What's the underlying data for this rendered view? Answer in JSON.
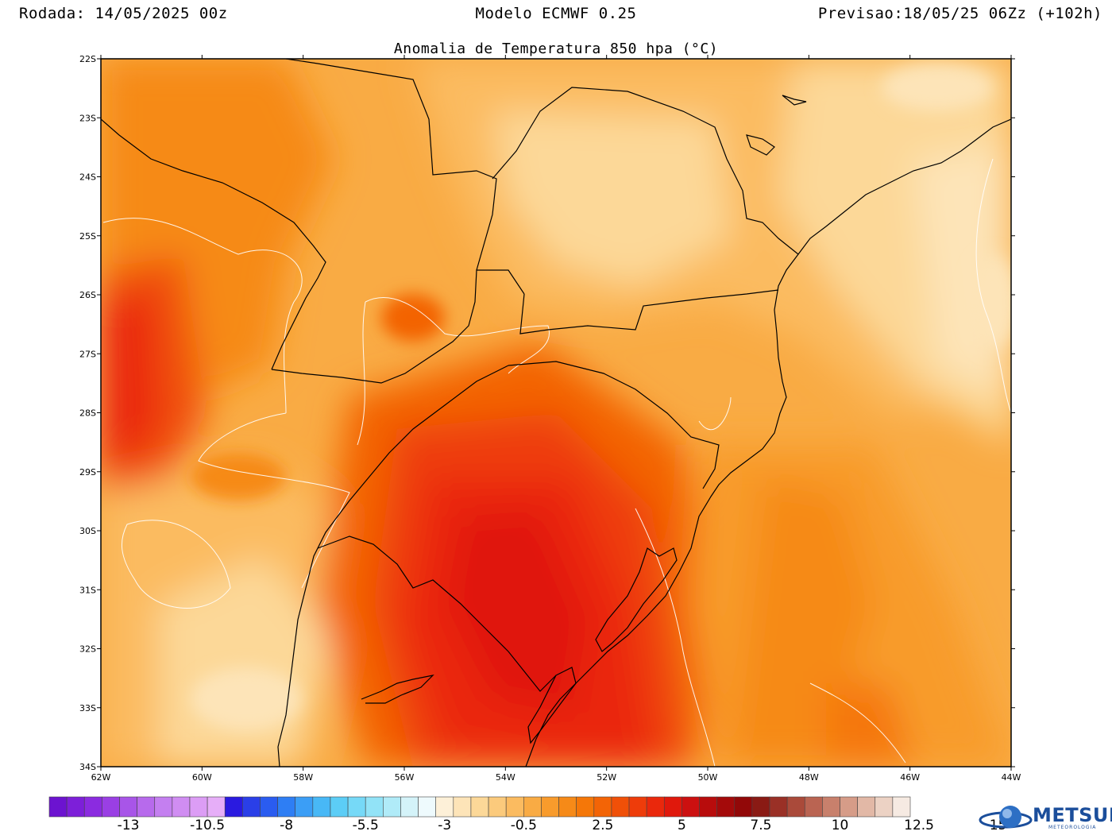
{
  "header": {
    "left": "Rodada: 14/05/2025 00z",
    "center": "Modelo ECMWF 0.25",
    "right": "Previsao:18/05/25 06Zz (+102h)"
  },
  "map": {
    "title": "Anomalia de Temperatura 850 hpa (°C)",
    "lat_labels": [
      "22S",
      "23S",
      "24S",
      "25S",
      "26S",
      "27S",
      "28S",
      "29S",
      "30S",
      "31S",
      "32S",
      "33S",
      "34S"
    ],
    "lon_labels": [
      "62W",
      "60W",
      "58W",
      "56W",
      "54W",
      "52W",
      "50W",
      "48W",
      "46W",
      "44W"
    ],
    "lon_range": [
      -62,
      -44
    ],
    "lat_range": [
      -34,
      -22
    ]
  },
  "legend": {
    "labels": [
      "-13",
      "-10.5",
      "-8",
      "-5.5",
      "-3",
      "-0.5",
      "2.5",
      "5",
      "7.5",
      "10",
      "12.5",
      "15"
    ],
    "colors": [
      "#6c13d0",
      "#7d1fd9",
      "#8b2be0",
      "#9a3fe4",
      "#a855e8",
      "#b76aec",
      "#c47ff0",
      "#d08df2",
      "#dc9df5",
      "#e6aef8",
      "#2a1ae0",
      "#2a3fe8",
      "#2a5cf0",
      "#2e7ef4",
      "#3b9ef6",
      "#48b8f6",
      "#5ccdf6",
      "#76d9f7",
      "#92e3f7",
      "#b0ebf8",
      "#d4f3f9",
      "#eefafd",
      "#fdf0d8",
      "#fde4b8",
      "#fcd898",
      "#fbca7c",
      "#fbbb60",
      "#f9ab44",
      "#f89b2c",
      "#f68a18",
      "#f57708",
      "#f36406",
      "#f05008",
      "#ee3c0a",
      "#ea280c",
      "#e0180c",
      "#cc1010",
      "#b80c0c",
      "#a40a0a",
      "#920808",
      "#8a1a14",
      "#9a3026",
      "#aa4a3a",
      "#ba6452",
      "#c8806c",
      "#d69c88",
      "#e2b8a6",
      "#ecd2c4",
      "#f6eae2"
    ]
  },
  "logo": {
    "name": "METSUL",
    "subtitle": "METEOROLOGIA"
  }
}
